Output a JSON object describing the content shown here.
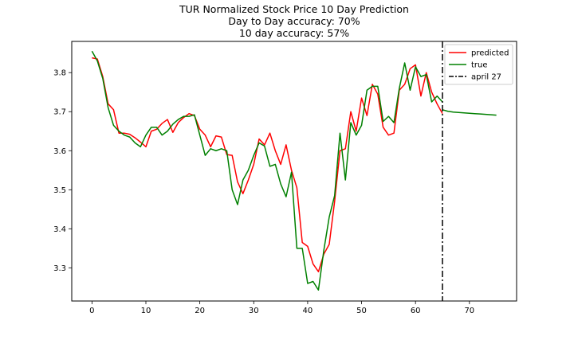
{
  "chart_data": {
    "type": "line",
    "title_lines": [
      "TUR Normalized Stock Price 10 Day Prediction",
      "Day to Day accuracy: 70%",
      "10 day accuracy: 57%"
    ],
    "xlabel": "",
    "ylabel": "",
    "xlim": [
      -3.75,
      78.75
    ],
    "ylim": [
      3.215,
      3.88
    ],
    "xticks": [
      0,
      10,
      20,
      30,
      40,
      50,
      60,
      70
    ],
    "yticks": [
      3.3,
      3.4,
      3.5,
      3.6,
      3.7,
      3.8
    ],
    "ytick_labels": [
      "3.3",
      "3.4",
      "3.5",
      "3.6",
      "3.7",
      "3.8"
    ],
    "grid": false,
    "legend_placement": "top-right",
    "series": [
      {
        "name": "predicted",
        "color": "#ff0000",
        "style": "solid",
        "x": [
          0,
          1,
          2,
          3,
          4,
          5,
          6,
          7,
          8,
          9,
          10,
          11,
          12,
          13,
          14,
          15,
          16,
          17,
          18,
          19,
          20,
          21,
          22,
          23,
          24,
          25,
          26,
          27,
          28,
          29,
          30,
          31,
          32,
          33,
          34,
          35,
          36,
          37,
          38,
          39,
          40,
          41,
          42,
          43,
          44,
          45,
          46,
          47,
          48,
          49,
          50,
          51,
          52,
          53,
          54,
          55,
          56,
          57,
          58,
          59,
          60,
          61,
          62,
          63,
          64,
          65
        ],
        "values": [
          3.838,
          3.835,
          3.79,
          3.72,
          3.705,
          3.645,
          3.645,
          3.642,
          3.633,
          3.622,
          3.61,
          3.65,
          3.655,
          3.67,
          3.68,
          3.647,
          3.672,
          3.685,
          3.695,
          3.69,
          3.655,
          3.64,
          3.61,
          3.638,
          3.635,
          3.59,
          3.588,
          3.52,
          3.49,
          3.525,
          3.565,
          3.63,
          3.615,
          3.645,
          3.6,
          3.565,
          3.615,
          3.55,
          3.505,
          3.365,
          3.355,
          3.31,
          3.29,
          3.335,
          3.36,
          3.47,
          3.6,
          3.605,
          3.7,
          3.65,
          3.735,
          3.69,
          3.77,
          3.745,
          3.66,
          3.64,
          3.645,
          3.755,
          3.77,
          3.81,
          3.82,
          3.74,
          3.8,
          3.75,
          3.72,
          3.695
        ]
      },
      {
        "name": "true",
        "color": "#008000",
        "style": "solid",
        "x": [
          0,
          1,
          2,
          3,
          4,
          5,
          6,
          7,
          8,
          9,
          10,
          11,
          12,
          13,
          14,
          15,
          16,
          17,
          18,
          19,
          20,
          21,
          22,
          23,
          24,
          25,
          26,
          27,
          28,
          29,
          30,
          31,
          32,
          33,
          34,
          35,
          36,
          37,
          38,
          39,
          40,
          41,
          42,
          43,
          44,
          45,
          46,
          47,
          48,
          49,
          50,
          51,
          52,
          53,
          54,
          55,
          56,
          57,
          58,
          59,
          60,
          61,
          62,
          63,
          64,
          65
        ],
        "values": [
          3.855,
          3.83,
          3.785,
          3.71,
          3.665,
          3.65,
          3.64,
          3.635,
          3.62,
          3.61,
          3.64,
          3.66,
          3.66,
          3.64,
          3.65,
          3.668,
          3.68,
          3.688,
          3.688,
          3.692,
          3.64,
          3.588,
          3.605,
          3.6,
          3.605,
          3.6,
          3.5,
          3.462,
          3.525,
          3.55,
          3.588,
          3.62,
          3.612,
          3.56,
          3.565,
          3.515,
          3.482,
          3.545,
          3.35,
          3.35,
          3.26,
          3.265,
          3.243,
          3.345,
          3.43,
          3.485,
          3.645,
          3.525,
          3.672,
          3.64,
          3.665,
          3.755,
          3.765,
          3.765,
          3.675,
          3.688,
          3.672,
          3.76,
          3.825,
          3.755,
          3.815,
          3.79,
          3.795,
          3.725,
          3.74,
          3.725
        ]
      },
      {
        "name": "",
        "color": "#008000",
        "style": "solid",
        "x": [
          65,
          66,
          67,
          68,
          69,
          70,
          71,
          72,
          73,
          74,
          75
        ],
        "values": [
          3.705,
          3.701,
          3.699,
          3.698,
          3.697,
          3.696,
          3.695,
          3.694,
          3.693,
          3.692,
          3.691
        ]
      }
    ],
    "vlines": [
      {
        "name": "april 27",
        "x": 65,
        "color": "#000000",
        "style": "dashdot"
      }
    ]
  }
}
